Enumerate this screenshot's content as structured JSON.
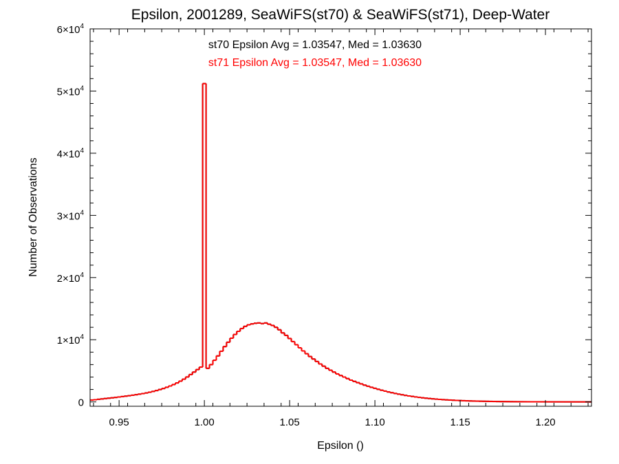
{
  "chart_data": {
    "type": "histogram",
    "title": "Epsilon, 2001289, SeaWiFS(st70) & SeaWiFS(st71), Deep-Water",
    "xlabel": "Epsilon ()",
    "ylabel": "Number of Observations",
    "xlim": [
      0.933,
      1.227
    ],
    "ylim": [
      -700,
      60000
    ],
    "x_ticks": [
      0.95,
      1.0,
      1.05,
      1.1,
      1.15,
      1.2
    ],
    "x_tick_labels": [
      "0.95",
      "1.00",
      "1.05",
      "1.10",
      "1.15",
      "1.20"
    ],
    "y_ticks": [
      0,
      10000,
      20000,
      30000,
      40000,
      50000,
      60000
    ],
    "y_tick_labels": [
      {
        "mant": "0",
        "exp": ""
      },
      {
        "mant": "1×10",
        "exp": "4"
      },
      {
        "mant": "2×10",
        "exp": "4"
      },
      {
        "mant": "3×10",
        "exp": "4"
      },
      {
        "mant": "4×10",
        "exp": "4"
      },
      {
        "mant": "5×10",
        "exp": "4"
      },
      {
        "mant": "6×10",
        "exp": "4"
      }
    ],
    "annotations": [
      {
        "text": "st70 Epsilon Avg = 1.03547, Med = 1.03630",
        "color": "#000000"
      },
      {
        "text": "st71 Epsilon Avg = 1.03547, Med = 1.03630",
        "color": "#ff0000"
      }
    ],
    "series": [
      {
        "name": "st70",
        "color": "#000000",
        "bin_width": 0.002,
        "bin_starts": [
          0.933,
          0.935,
          0.937,
          0.939,
          0.941,
          0.943,
          0.945,
          0.947,
          0.949,
          0.951,
          0.953,
          0.955,
          0.957,
          0.959,
          0.961,
          0.963,
          0.965,
          0.967,
          0.969,
          0.971,
          0.973,
          0.975,
          0.977,
          0.979,
          0.981,
          0.983,
          0.985,
          0.987,
          0.989,
          0.991,
          0.993,
          0.995,
          0.997,
          0.999,
          1.001,
          1.003,
          1.005,
          1.007,
          1.009,
          1.011,
          1.013,
          1.015,
          1.017,
          1.019,
          1.021,
          1.023,
          1.025,
          1.027,
          1.029,
          1.031,
          1.033,
          1.035,
          1.037,
          1.039,
          1.041,
          1.043,
          1.045,
          1.047,
          1.049,
          1.051,
          1.053,
          1.055,
          1.057,
          1.059,
          1.061,
          1.063,
          1.065,
          1.067,
          1.069,
          1.071,
          1.073,
          1.075,
          1.077,
          1.079,
          1.081,
          1.083,
          1.085,
          1.087,
          1.089,
          1.091,
          1.093,
          1.095,
          1.097,
          1.099,
          1.101,
          1.103,
          1.105,
          1.107,
          1.109,
          1.111,
          1.113,
          1.115,
          1.117,
          1.119,
          1.121,
          1.123,
          1.125,
          1.127,
          1.129,
          1.131,
          1.133,
          1.135,
          1.137,
          1.139,
          1.141,
          1.143,
          1.145,
          1.147,
          1.149,
          1.151,
          1.153,
          1.155,
          1.157,
          1.159,
          1.161,
          1.163,
          1.165,
          1.167,
          1.169,
          1.171,
          1.173,
          1.175,
          1.177,
          1.179,
          1.181,
          1.183,
          1.185,
          1.187,
          1.189,
          1.191,
          1.193,
          1.195,
          1.197,
          1.199,
          1.201,
          1.203,
          1.205,
          1.207,
          1.209,
          1.211,
          1.213,
          1.215,
          1.217,
          1.219,
          1.221,
          1.223,
          1.225
        ],
        "values": [
          300,
          350,
          420,
          480,
          540,
          600,
          660,
          720,
          790,
          860,
          930,
          1000,
          1080,
          1160,
          1250,
          1340,
          1440,
          1560,
          1690,
          1830,
          1990,
          2160,
          2350,
          2560,
          2790,
          3050,
          3340,
          3660,
          4010,
          4400,
          4800,
          5200,
          5600,
          51200,
          5400,
          6000,
          6700,
          7400,
          8150,
          8900,
          9600,
          10250,
          10850,
          11350,
          11800,
          12150,
          12400,
          12550,
          12650,
          12700,
          12600,
          12700,
          12500,
          12300,
          12000,
          11600,
          11100,
          10700,
          10200,
          9700,
          9200,
          8700,
          8200,
          7750,
          7300,
          6900,
          6500,
          6100,
          5750,
          5400,
          5100,
          4800,
          4500,
          4250,
          4000,
          3750,
          3500,
          3300,
          3100,
          2900,
          2700,
          2520,
          2350,
          2190,
          2030,
          1880,
          1740,
          1600,
          1480,
          1360,
          1250,
          1150,
          1050,
          960,
          880,
          800,
          730,
          660,
          600,
          545,
          495,
          450,
          405,
          365,
          330,
          300,
          270,
          240,
          215,
          195,
          175,
          155,
          140,
          125,
          110,
          100,
          90,
          80,
          70,
          60,
          55,
          50,
          45,
          40,
          35,
          30,
          28,
          25,
          22,
          20,
          18,
          16,
          14,
          12,
          10,
          9,
          8,
          7,
          6,
          5,
          5,
          4,
          4,
          3,
          3,
          2,
          2
        ]
      },
      {
        "name": "st71",
        "color": "#ff0000",
        "bin_width": 0.002,
        "bin_starts": [
          0.933,
          0.935,
          0.937,
          0.939,
          0.941,
          0.943,
          0.945,
          0.947,
          0.949,
          0.951,
          0.953,
          0.955,
          0.957,
          0.959,
          0.961,
          0.963,
          0.965,
          0.967,
          0.969,
          0.971,
          0.973,
          0.975,
          0.977,
          0.979,
          0.981,
          0.983,
          0.985,
          0.987,
          0.989,
          0.991,
          0.993,
          0.995,
          0.997,
          0.999,
          1.001,
          1.003,
          1.005,
          1.007,
          1.009,
          1.011,
          1.013,
          1.015,
          1.017,
          1.019,
          1.021,
          1.023,
          1.025,
          1.027,
          1.029,
          1.031,
          1.033,
          1.035,
          1.037,
          1.039,
          1.041,
          1.043,
          1.045,
          1.047,
          1.049,
          1.051,
          1.053,
          1.055,
          1.057,
          1.059,
          1.061,
          1.063,
          1.065,
          1.067,
          1.069,
          1.071,
          1.073,
          1.075,
          1.077,
          1.079,
          1.081,
          1.083,
          1.085,
          1.087,
          1.089,
          1.091,
          1.093,
          1.095,
          1.097,
          1.099,
          1.101,
          1.103,
          1.105,
          1.107,
          1.109,
          1.111,
          1.113,
          1.115,
          1.117,
          1.119,
          1.121,
          1.123,
          1.125,
          1.127,
          1.129,
          1.131,
          1.133,
          1.135,
          1.137,
          1.139,
          1.141,
          1.143,
          1.145,
          1.147,
          1.149,
          1.151,
          1.153,
          1.155,
          1.157,
          1.159,
          1.161,
          1.163,
          1.165,
          1.167,
          1.169,
          1.171,
          1.173,
          1.175,
          1.177,
          1.179,
          1.181,
          1.183,
          1.185,
          1.187,
          1.189,
          1.191,
          1.193,
          1.195,
          1.197,
          1.199,
          1.201,
          1.203,
          1.205,
          1.207,
          1.209,
          1.211,
          1.213,
          1.215,
          1.217,
          1.219,
          1.221,
          1.223,
          1.225
        ],
        "values": [
          300,
          350,
          420,
          480,
          540,
          600,
          660,
          720,
          790,
          860,
          930,
          1000,
          1080,
          1160,
          1250,
          1340,
          1440,
          1560,
          1690,
          1830,
          1990,
          2160,
          2350,
          2560,
          2790,
          3050,
          3340,
          3660,
          4010,
          4400,
          4800,
          5200,
          5600,
          51200,
          5400,
          6000,
          6700,
          7400,
          8150,
          8900,
          9600,
          10250,
          10850,
          11350,
          11800,
          12150,
          12400,
          12550,
          12650,
          12700,
          12600,
          12700,
          12500,
          12300,
          12000,
          11600,
          11100,
          10700,
          10200,
          9700,
          9200,
          8700,
          8200,
          7750,
          7300,
          6900,
          6500,
          6100,
          5750,
          5400,
          5100,
          4800,
          4500,
          4250,
          4000,
          3750,
          3500,
          3300,
          3100,
          2900,
          2700,
          2520,
          2350,
          2190,
          2030,
          1880,
          1740,
          1600,
          1480,
          1360,
          1250,
          1150,
          1050,
          960,
          880,
          800,
          730,
          660,
          600,
          545,
          495,
          450,
          405,
          365,
          330,
          300,
          270,
          240,
          215,
          195,
          175,
          155,
          140,
          125,
          110,
          100,
          90,
          80,
          70,
          60,
          55,
          50,
          45,
          40,
          35,
          30,
          28,
          25,
          22,
          20,
          18,
          16,
          14,
          12,
          10,
          9,
          8,
          7,
          6,
          5,
          5,
          4,
          4,
          3,
          3,
          2,
          2
        ]
      }
    ]
  }
}
